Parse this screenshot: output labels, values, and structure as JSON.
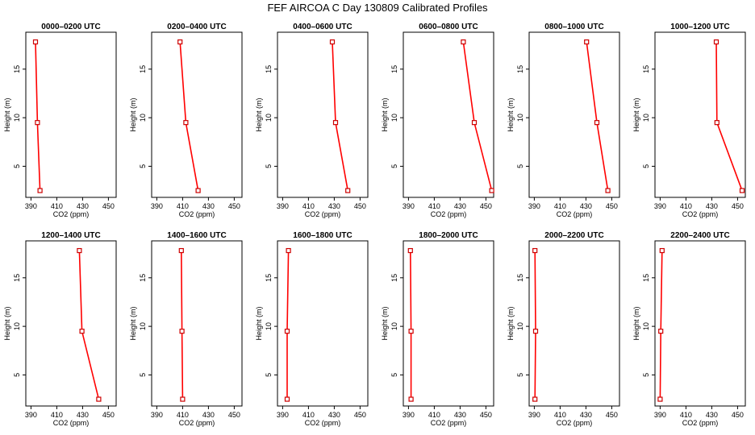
{
  "figure_title": "FEF AIRCOA C  Day 130809  Calibrated Profiles",
  "chart_data": [
    {
      "type": "line",
      "title": "0000–0200 UTC",
      "xlabel": "CO2 (ppm)",
      "ylabel": "Height (m)",
      "xlim": [
        386,
        456
      ],
      "ylim": [
        1.8,
        18.8
      ],
      "xticks": [
        390,
        410,
        430,
        450
      ],
      "yticks": [
        5,
        10,
        15
      ],
      "series": [
        {
          "x": [
            393.5,
            395.0,
            397.0
          ],
          "y": [
            17.8,
            9.5,
            2.5
          ]
        }
      ]
    },
    {
      "type": "line",
      "title": "0200–0400 UTC",
      "xlabel": "CO2 (ppm)",
      "ylabel": "Height (m)",
      "xlim": [
        386,
        456
      ],
      "ylim": [
        1.8,
        18.8
      ],
      "xticks": [
        390,
        410,
        430,
        450
      ],
      "yticks": [
        5,
        10,
        15
      ],
      "series": [
        {
          "x": [
            408.0,
            412.5,
            422.0
          ],
          "y": [
            17.8,
            9.5,
            2.5
          ]
        }
      ]
    },
    {
      "type": "line",
      "title": "0400–0600 UTC",
      "xlabel": "CO2 (ppm)",
      "ylabel": "Height (m)",
      "xlim": [
        386,
        456
      ],
      "ylim": [
        1.8,
        18.8
      ],
      "xticks": [
        390,
        410,
        430,
        450
      ],
      "yticks": [
        5,
        10,
        15
      ],
      "series": [
        {
          "x": [
            428.5,
            431.0,
            440.5
          ],
          "y": [
            17.8,
            9.5,
            2.5
          ]
        }
      ]
    },
    {
      "type": "line",
      "title": "0600–0800 UTC",
      "xlabel": "CO2 (ppm)",
      "ylabel": "Height (m)",
      "xlim": [
        386,
        456
      ],
      "ylim": [
        1.8,
        18.8
      ],
      "xticks": [
        390,
        410,
        430,
        450
      ],
      "yticks": [
        5,
        10,
        15
      ],
      "series": [
        {
          "x": [
            432.5,
            441.0,
            454.5
          ],
          "y": [
            17.8,
            9.5,
            2.5
          ]
        }
      ]
    },
    {
      "type": "line",
      "title": "0800–1000 UTC",
      "xlabel": "CO2 (ppm)",
      "ylabel": "Height (m)",
      "xlim": [
        386,
        456
      ],
      "ylim": [
        1.8,
        18.8
      ],
      "xticks": [
        390,
        410,
        430,
        450
      ],
      "yticks": [
        5,
        10,
        15
      ],
      "series": [
        {
          "x": [
            430.5,
            438.5,
            447.0
          ],
          "y": [
            17.8,
            9.5,
            2.5
          ]
        }
      ]
    },
    {
      "type": "line",
      "title": "1000–1200 UTC",
      "xlabel": "CO2 (ppm)",
      "ylabel": "Height (m)",
      "xlim": [
        386,
        456
      ],
      "ylim": [
        1.8,
        18.8
      ],
      "xticks": [
        390,
        410,
        430,
        450
      ],
      "yticks": [
        5,
        10,
        15
      ],
      "series": [
        {
          "x": [
            433.5,
            434.0,
            453.5
          ],
          "y": [
            17.8,
            9.5,
            2.5
          ]
        }
      ]
    },
    {
      "type": "line",
      "title": "1200–1400 UTC",
      "xlabel": "CO2 (ppm)",
      "ylabel": "Height (m)",
      "xlim": [
        386,
        456
      ],
      "ylim": [
        1.8,
        18.8
      ],
      "xticks": [
        390,
        410,
        430,
        450
      ],
      "yticks": [
        5,
        10,
        15
      ],
      "series": [
        {
          "x": [
            427.5,
            429.5,
            442.5
          ],
          "y": [
            17.8,
            9.5,
            2.5
          ]
        }
      ]
    },
    {
      "type": "line",
      "title": "1400–1600 UTC",
      "xlabel": "CO2 (ppm)",
      "ylabel": "Height (m)",
      "xlim": [
        386,
        456
      ],
      "ylim": [
        1.8,
        18.8
      ],
      "xticks": [
        390,
        410,
        430,
        450
      ],
      "yticks": [
        5,
        10,
        15
      ],
      "series": [
        {
          "x": [
            409.0,
            409.5,
            410.0
          ],
          "y": [
            17.8,
            9.5,
            2.5
          ]
        }
      ]
    },
    {
      "type": "line",
      "title": "1600–1800 UTC",
      "xlabel": "CO2 (ppm)",
      "ylabel": "Height (m)",
      "xlim": [
        386,
        456
      ],
      "ylim": [
        1.8,
        18.8
      ],
      "xticks": [
        390,
        410,
        430,
        450
      ],
      "yticks": [
        5,
        10,
        15
      ],
      "series": [
        {
          "x": [
            394.5,
            393.5,
            393.5
          ],
          "y": [
            17.8,
            9.5,
            2.5
          ]
        }
      ]
    },
    {
      "type": "line",
      "title": "1800–2000 UTC",
      "xlabel": "CO2 (ppm)",
      "ylabel": "Height (m)",
      "xlim": [
        386,
        456
      ],
      "ylim": [
        1.8,
        18.8
      ],
      "xticks": [
        390,
        410,
        430,
        450
      ],
      "yticks": [
        5,
        10,
        15
      ],
      "series": [
        {
          "x": [
            391.5,
            392.0,
            392.0
          ],
          "y": [
            17.8,
            9.5,
            2.5
          ]
        }
      ]
    },
    {
      "type": "line",
      "title": "2000–2200 UTC",
      "xlabel": "CO2 (ppm)",
      "ylabel": "Height (m)",
      "xlim": [
        386,
        456
      ],
      "ylim": [
        1.8,
        18.8
      ],
      "xticks": [
        390,
        410,
        430,
        450
      ],
      "yticks": [
        5,
        10,
        15
      ],
      "series": [
        {
          "x": [
            390.5,
            391.0,
            390.5
          ],
          "y": [
            17.8,
            9.5,
            2.5
          ]
        }
      ]
    },
    {
      "type": "line",
      "title": "2200–2400 UTC",
      "xlabel": "CO2 (ppm)",
      "ylabel": "Height (m)",
      "xlim": [
        386,
        456
      ],
      "ylim": [
        1.8,
        18.8
      ],
      "xticks": [
        390,
        410,
        430,
        450
      ],
      "yticks": [
        5,
        10,
        15
      ],
      "series": [
        {
          "x": [
            391.5,
            390.5,
            390.0
          ],
          "y": [
            17.8,
            9.5,
            2.5
          ]
        }
      ]
    }
  ],
  "colors": {
    "series_line": "#ff0000",
    "marker": "#cc0000",
    "axes": "#000000"
  }
}
